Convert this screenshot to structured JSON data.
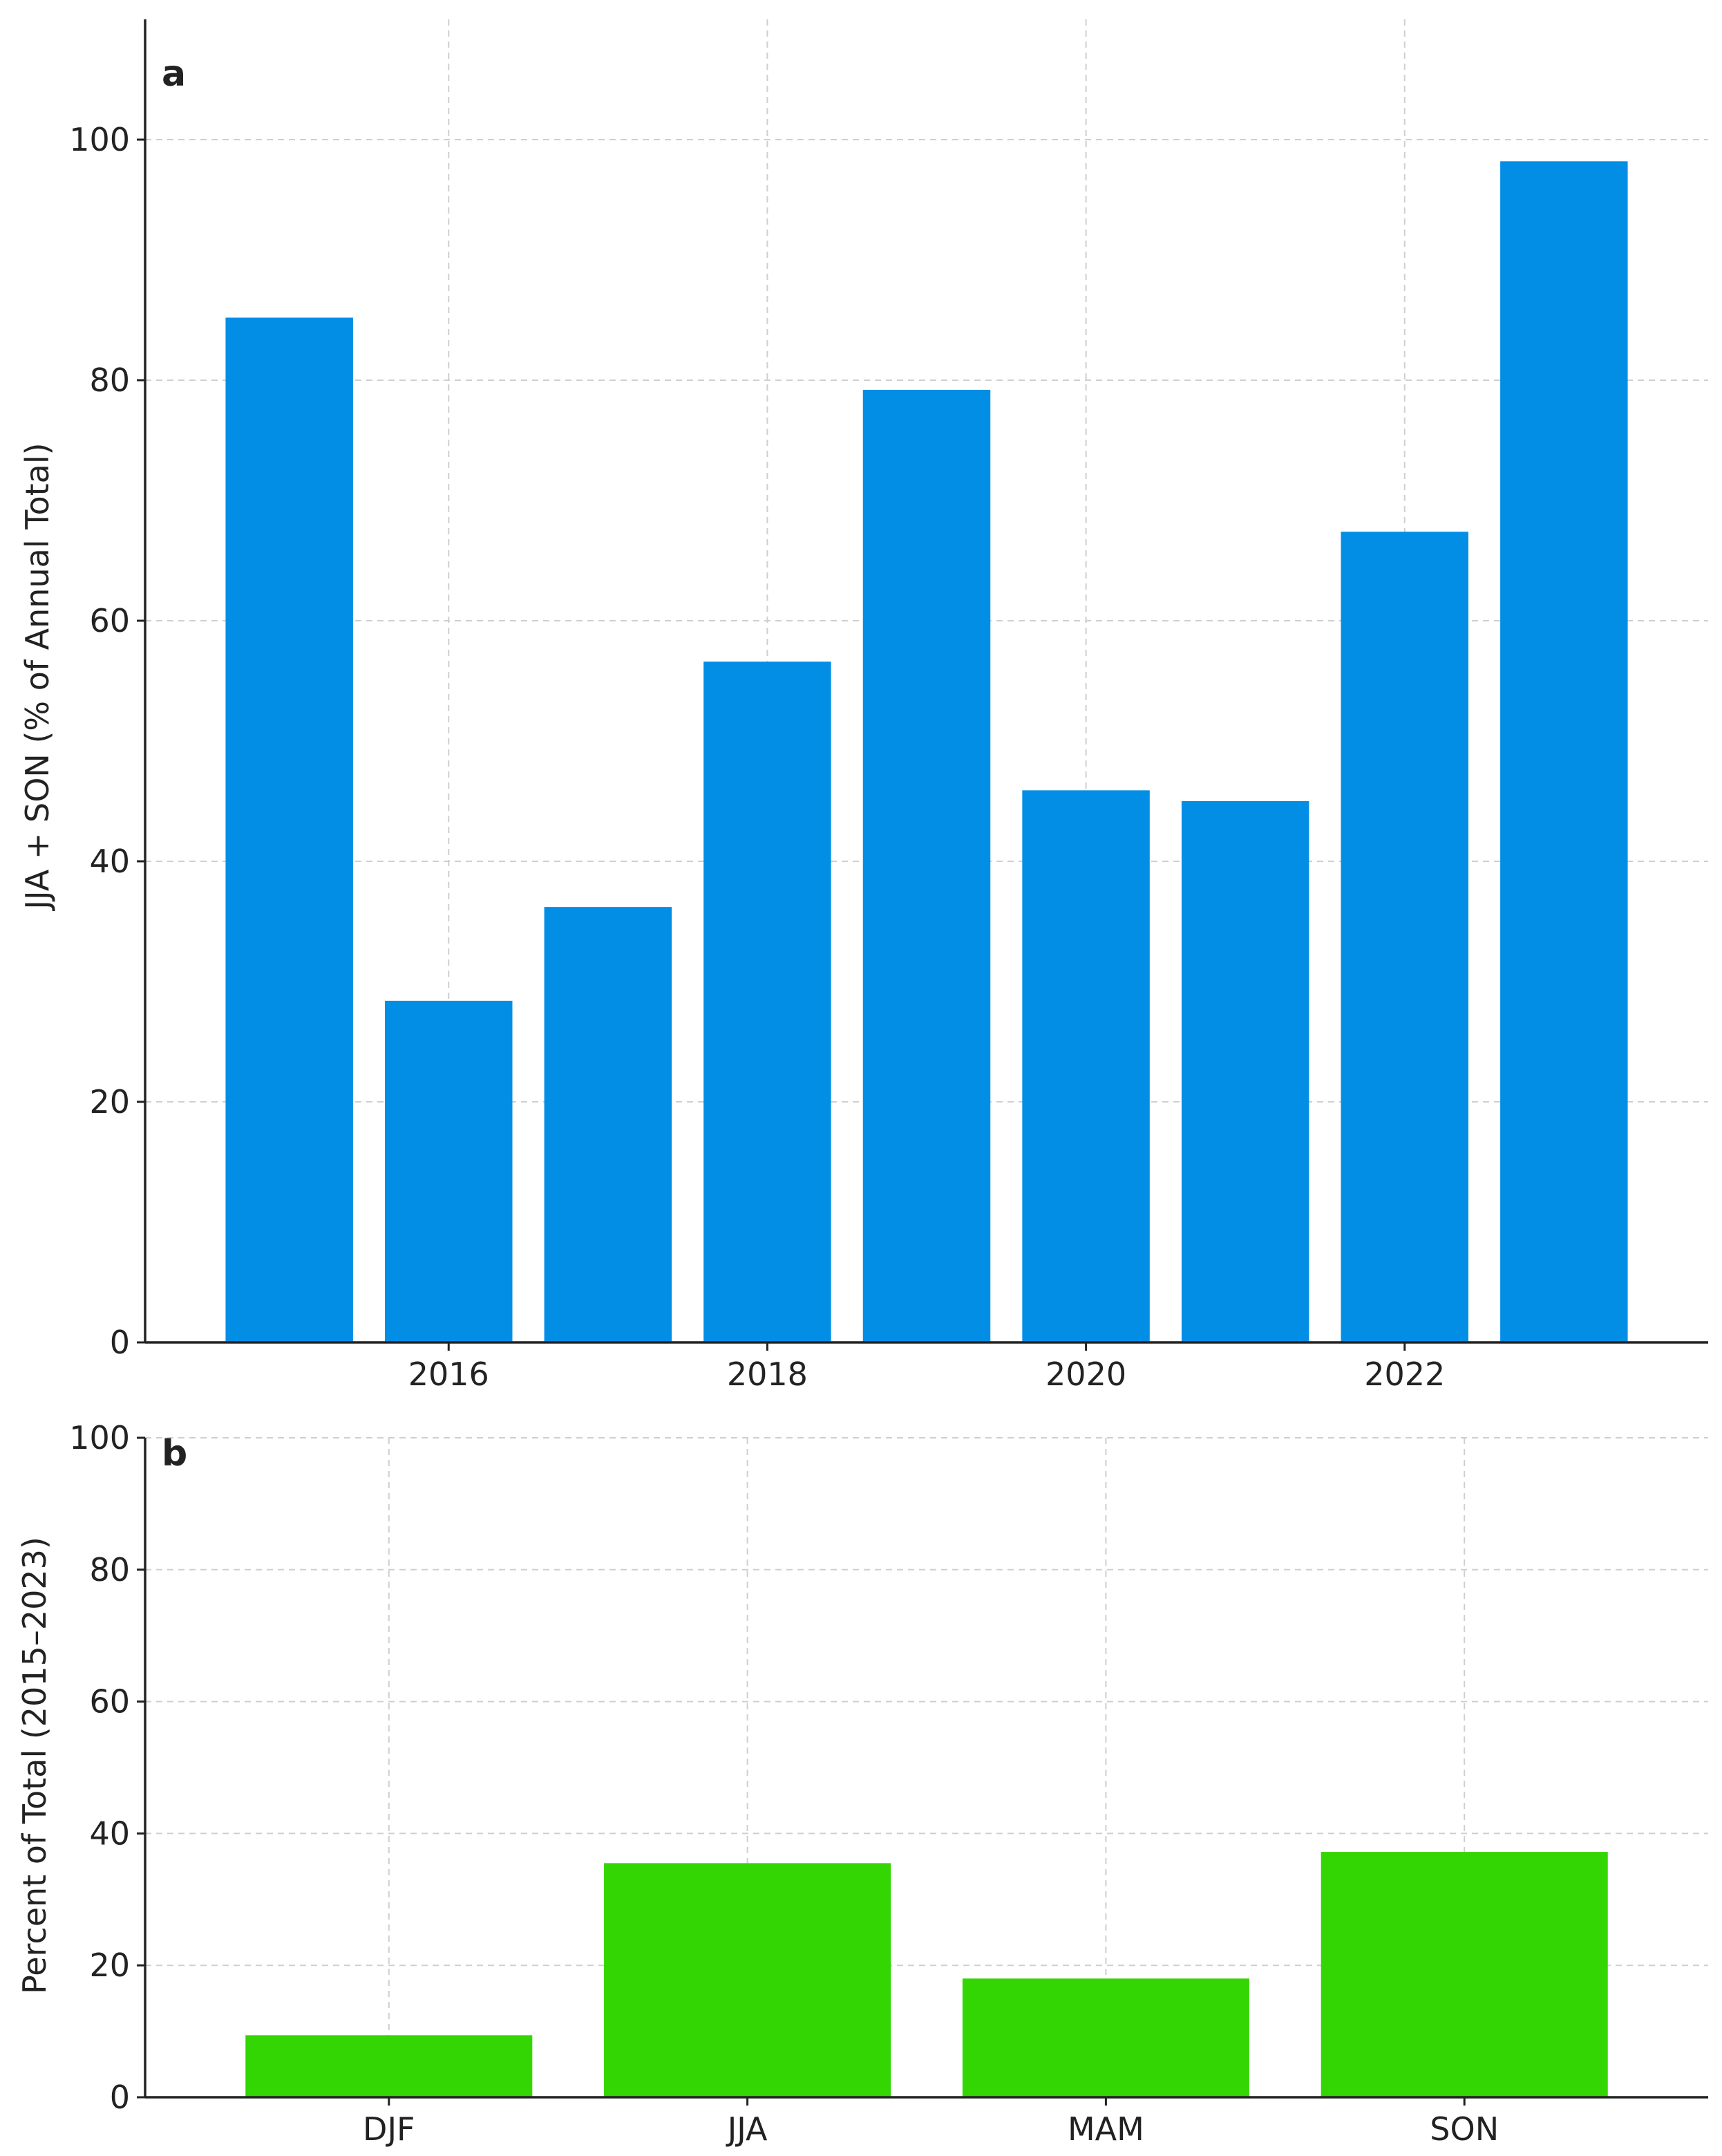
{
  "chart_data": [
    {
      "type": "bar",
      "panel_label": "a",
      "x": [
        2015,
        2016,
        2017,
        2018,
        2019,
        2020,
        2021,
        2022,
        2023
      ],
      "values": [
        85.2,
        28.4,
        36.2,
        56.6,
        79.2,
        45.9,
        45.0,
        67.4,
        98.2
      ],
      "xticks": [
        2016,
        2018,
        2020,
        2022
      ],
      "xlabel": "",
      "ylabel": "JJA + SON (% of Annual Total)",
      "ylim": [
        0,
        110
      ],
      "yticks": [
        0,
        20,
        40,
        60,
        80,
        100
      ],
      "color": "#038ee6",
      "grid": true
    },
    {
      "type": "bar",
      "panel_label": "b",
      "categories": [
        "DJF",
        "JJA",
        "MAM",
        "SON"
      ],
      "values": [
        9.4,
        35.5,
        18.0,
        37.2
      ],
      "xlabel": "",
      "ylabel": "Percent of Total (2015–2023)",
      "ylim": [
        0,
        100
      ],
      "yticks": [
        0,
        20,
        40,
        60,
        80,
        100
      ],
      "color": "#33d602",
      "grid": true
    }
  ]
}
